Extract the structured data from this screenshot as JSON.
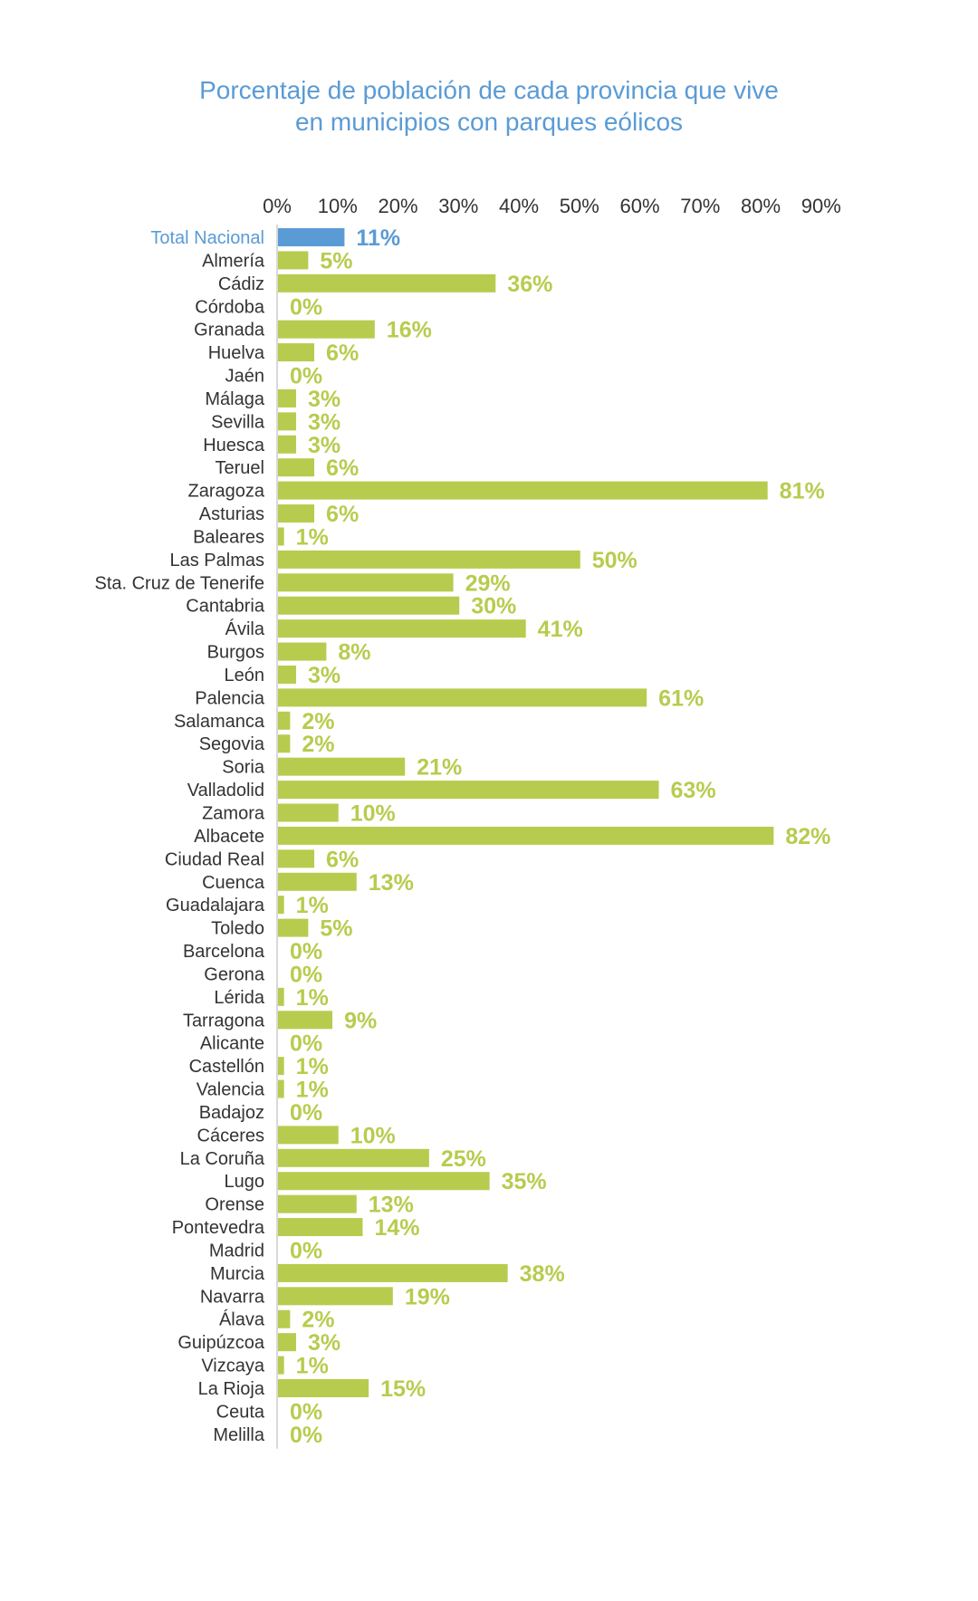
{
  "chart_data": {
    "type": "bar",
    "orientation": "horizontal",
    "title": "Porcentaje de población de cada provincia que vive en municipios con parques eólicos",
    "title_lines": [
      "Porcentaje de población de cada provincia que vive",
      "en municipios con parques eólicos"
    ],
    "xlim": [
      0,
      90
    ],
    "x_ticks": [
      "0%",
      "10%",
      "20%",
      "30%",
      "40%",
      "50%",
      "60%",
      "70%",
      "80%",
      "90%"
    ],
    "x_axis_position": "top",
    "grid": false,
    "colors": {
      "highlight": "#5a9bd5",
      "bars": "#b7cc4e",
      "labels": "#333333"
    },
    "categories": [
      "Total Nacional",
      "Almería",
      "Cádiz",
      "Córdoba",
      "Granada",
      "Huelva",
      "Jaén",
      "Málaga",
      "Sevilla",
      "Huesca",
      "Teruel",
      "Zaragoza",
      "Asturias",
      "Baleares",
      "Las Palmas",
      "Sta. Cruz de Tenerife",
      "Cantabria",
      "Ávila",
      "Burgos",
      "León",
      "Palencia",
      "Salamanca",
      "Segovia",
      "Soria",
      "Valladolid",
      "Zamora",
      "Albacete",
      "Ciudad Real",
      "Cuenca",
      "Guadalajara",
      "Toledo",
      "Barcelona",
      "Gerona",
      "Lérida",
      "Tarragona",
      "Alicante",
      "Castellón",
      "Valencia",
      "Badajoz",
      "Cáceres",
      "La Coruña",
      "Lugo",
      "Orense",
      "Pontevedra",
      "Madrid",
      "Murcia",
      "Navarra",
      "Álava",
      "Guipúzcoa",
      "Vizcaya",
      "La Rioja",
      "Ceuta",
      "Melilla"
    ],
    "values": [
      11,
      5,
      36,
      0,
      16,
      6,
      0,
      3,
      3,
      3,
      6,
      81,
      6,
      1,
      50,
      29,
      30,
      41,
      8,
      3,
      61,
      2,
      2,
      21,
      63,
      10,
      82,
      6,
      13,
      1,
      5,
      0,
      0,
      1,
      9,
      0,
      1,
      1,
      0,
      10,
      25,
      35,
      13,
      14,
      0,
      38,
      19,
      2,
      3,
      1,
      15,
      0,
      0
    ],
    "data_labels": [
      "11%",
      "5%",
      "36%",
      "0%",
      "16%",
      "6%",
      "0%",
      "3%",
      "3%",
      "3%",
      "6%",
      "81%",
      "6%",
      "1%",
      "50%",
      "29%",
      "30%",
      "41%",
      "8%",
      "3%",
      "61%",
      "2%",
      "2%",
      "21%",
      "63%",
      "10%",
      "82%",
      "6%",
      "13%",
      "1%",
      "5%",
      "0%",
      "0%",
      "1%",
      "9%",
      "0%",
      "1%",
      "1%",
      "0%",
      "10%",
      "25%",
      "35%",
      "13%",
      "14%",
      "0%",
      "38%",
      "19%",
      "2%",
      "3%",
      "1%",
      "15%",
      "0%",
      "0%"
    ],
    "highlighted_category": "Total Nacional"
  }
}
